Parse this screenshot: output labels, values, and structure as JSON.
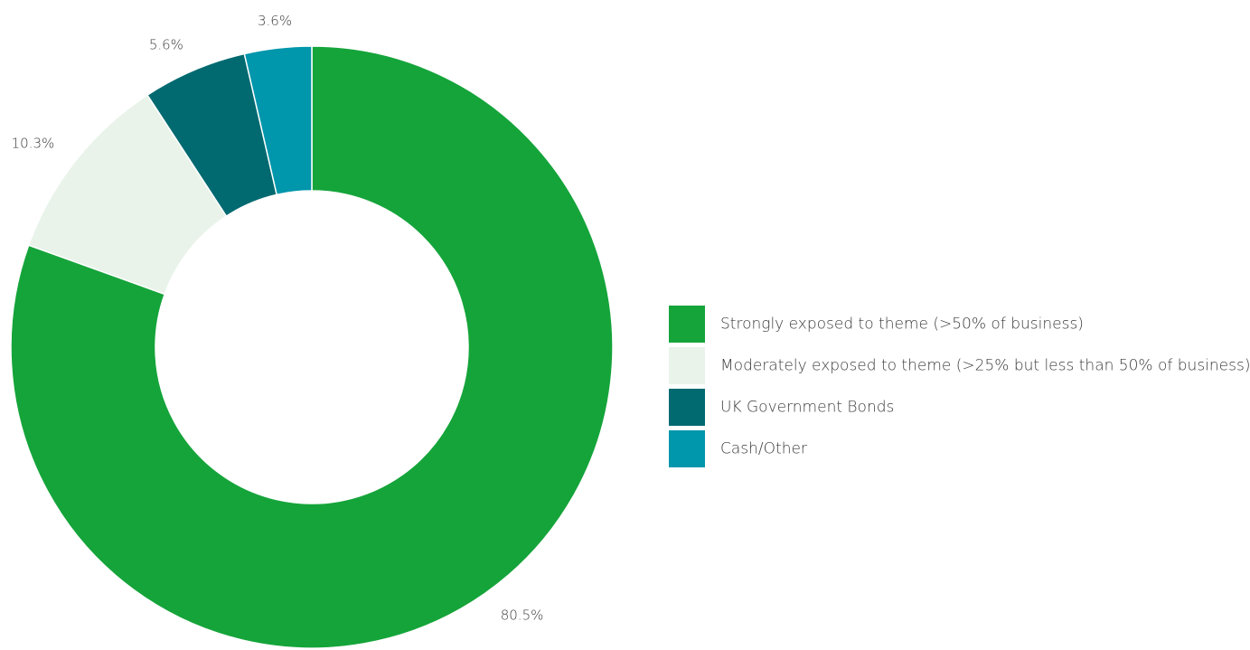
{
  "chart_data": {
    "type": "pie",
    "donut": true,
    "legend_position": "right",
    "series": [
      {
        "name": "Strongly exposed to theme (>50% of business)",
        "value": 80.5,
        "label": "80.5%",
        "color": "#15a43a"
      },
      {
        "name": "Moderately exposed to theme (>25% but less than 50% of business)",
        "value": 10.3,
        "label": "10.3%",
        "color": "#e9f3ea"
      },
      {
        "name": "UK Government Bonds",
        "value": 5.6,
        "label": "5.6%",
        "color": "#006a70"
      },
      {
        "name": "Cash/Other",
        "value": 3.6,
        "label": "3.6%",
        "color": "#0096ab"
      }
    ]
  }
}
